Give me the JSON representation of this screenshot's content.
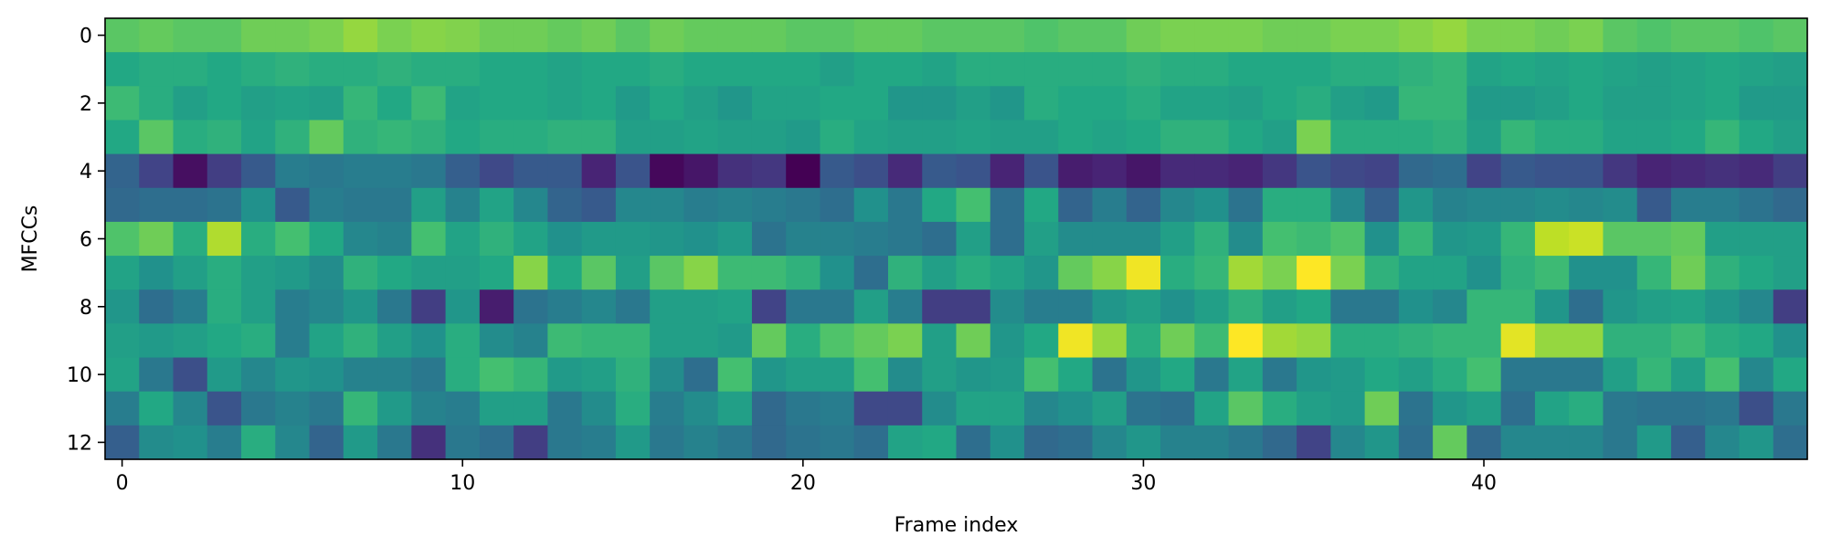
{
  "chart_data": {
    "type": "heatmap",
    "title": "",
    "xlabel": "Frame index",
    "ylabel": "MFCCs",
    "colormap": "viridis",
    "xlim": [
      -0.5,
      49.5
    ],
    "ylim": [
      12.5,
      -0.5
    ],
    "x_ticks": [
      0,
      10,
      20,
      30,
      40
    ],
    "y_ticks": [
      0,
      2,
      4,
      6,
      8,
      10,
      12
    ],
    "x_tick_labels": [
      "0",
      "10",
      "20",
      "30",
      "40"
    ],
    "y_tick_labels": [
      "0",
      "2",
      "4",
      "6",
      "8",
      "10",
      "12"
    ],
    "n_rows": 13,
    "n_cols": 50,
    "value_scale": "normalized 0-1 (no colorbar shown)",
    "matrix": [
      [
        0.74,
        0.76,
        0.74,
        0.74,
        0.78,
        0.78,
        0.8,
        0.84,
        0.8,
        0.82,
        0.81,
        0.78,
        0.78,
        0.76,
        0.78,
        0.74,
        0.78,
        0.76,
        0.76,
        0.76,
        0.74,
        0.74,
        0.76,
        0.76,
        0.74,
        0.74,
        0.74,
        0.72,
        0.74,
        0.74,
        0.78,
        0.8,
        0.8,
        0.8,
        0.78,
        0.78,
        0.8,
        0.8,
        0.82,
        0.84,
        0.8,
        0.8,
        0.78,
        0.8,
        0.74,
        0.72,
        0.74,
        0.74,
        0.72,
        0.74
      ],
      [
        0.6,
        0.62,
        0.62,
        0.6,
        0.62,
        0.64,
        0.62,
        0.62,
        0.64,
        0.62,
        0.62,
        0.6,
        0.6,
        0.58,
        0.6,
        0.6,
        0.62,
        0.6,
        0.6,
        0.6,
        0.6,
        0.56,
        0.6,
        0.6,
        0.58,
        0.62,
        0.62,
        0.62,
        0.62,
        0.62,
        0.64,
        0.62,
        0.62,
        0.6,
        0.6,
        0.6,
        0.62,
        0.62,
        0.64,
        0.66,
        0.58,
        0.6,
        0.58,
        0.6,
        0.58,
        0.56,
        0.58,
        0.6,
        0.58,
        0.56
      ],
      [
        0.68,
        0.62,
        0.56,
        0.6,
        0.56,
        0.58,
        0.56,
        0.66,
        0.6,
        0.68,
        0.58,
        0.6,
        0.6,
        0.58,
        0.6,
        0.54,
        0.6,
        0.56,
        0.52,
        0.58,
        0.58,
        0.6,
        0.6,
        0.52,
        0.52,
        0.56,
        0.52,
        0.62,
        0.6,
        0.6,
        0.62,
        0.58,
        0.58,
        0.56,
        0.6,
        0.62,
        0.56,
        0.54,
        0.66,
        0.66,
        0.54,
        0.54,
        0.56,
        0.6,
        0.56,
        0.56,
        0.58,
        0.6,
        0.54,
        0.54
      ],
      [
        0.6,
        0.74,
        0.62,
        0.64,
        0.58,
        0.64,
        0.76,
        0.64,
        0.66,
        0.64,
        0.6,
        0.62,
        0.62,
        0.64,
        0.64,
        0.56,
        0.56,
        0.58,
        0.56,
        0.56,
        0.54,
        0.62,
        0.58,
        0.56,
        0.56,
        0.58,
        0.56,
        0.56,
        0.6,
        0.58,
        0.6,
        0.64,
        0.64,
        0.6,
        0.56,
        0.8,
        0.62,
        0.62,
        0.62,
        0.64,
        0.56,
        0.66,
        0.62,
        0.62,
        0.58,
        0.58,
        0.6,
        0.66,
        0.6,
        0.56
      ],
      [
        0.32,
        0.2,
        0.04,
        0.18,
        0.28,
        0.42,
        0.4,
        0.42,
        0.42,
        0.4,
        0.3,
        0.22,
        0.28,
        0.28,
        0.1,
        0.26,
        0.02,
        0.06,
        0.14,
        0.16,
        0.0,
        0.28,
        0.24,
        0.12,
        0.28,
        0.26,
        0.1,
        0.26,
        0.08,
        0.1,
        0.06,
        0.12,
        0.12,
        0.1,
        0.16,
        0.26,
        0.22,
        0.2,
        0.34,
        0.36,
        0.2,
        0.28,
        0.26,
        0.26,
        0.16,
        0.1,
        0.12,
        0.14,
        0.12,
        0.18
      ],
      [
        0.34,
        0.36,
        0.36,
        0.38,
        0.5,
        0.28,
        0.42,
        0.4,
        0.4,
        0.56,
        0.44,
        0.58,
        0.46,
        0.32,
        0.28,
        0.46,
        0.46,
        0.42,
        0.44,
        0.42,
        0.4,
        0.36,
        0.5,
        0.4,
        0.6,
        0.7,
        0.36,
        0.6,
        0.32,
        0.42,
        0.32,
        0.46,
        0.5,
        0.38,
        0.62,
        0.62,
        0.46,
        0.3,
        0.52,
        0.44,
        0.46,
        0.46,
        0.48,
        0.46,
        0.48,
        0.28,
        0.42,
        0.42,
        0.38,
        0.34
      ],
      [
        0.72,
        0.78,
        0.62,
        0.88,
        0.62,
        0.7,
        0.6,
        0.46,
        0.44,
        0.7,
        0.58,
        0.64,
        0.58,
        0.5,
        0.54,
        0.54,
        0.52,
        0.5,
        0.54,
        0.38,
        0.44,
        0.44,
        0.42,
        0.4,
        0.36,
        0.56,
        0.36,
        0.56,
        0.48,
        0.48,
        0.48,
        0.56,
        0.64,
        0.48,
        0.7,
        0.68,
        0.72,
        0.5,
        0.66,
        0.52,
        0.54,
        0.66,
        0.9,
        0.92,
        0.74,
        0.74,
        0.76,
        0.56,
        0.56,
        0.56
      ],
      [
        0.58,
        0.5,
        0.56,
        0.62,
        0.56,
        0.54,
        0.48,
        0.64,
        0.6,
        0.56,
        0.56,
        0.6,
        0.82,
        0.6,
        0.74,
        0.56,
        0.74,
        0.82,
        0.68,
        0.68,
        0.64,
        0.5,
        0.36,
        0.64,
        0.56,
        0.62,
        0.58,
        0.52,
        0.76,
        0.82,
        0.98,
        0.62,
        0.66,
        0.86,
        0.8,
        1.0,
        0.8,
        0.64,
        0.58,
        0.58,
        0.5,
        0.64,
        0.68,
        0.5,
        0.5,
        0.66,
        0.78,
        0.64,
        0.6,
        0.56
      ],
      [
        0.52,
        0.36,
        0.42,
        0.62,
        0.56,
        0.42,
        0.46,
        0.52,
        0.4,
        0.18,
        0.52,
        0.08,
        0.38,
        0.42,
        0.46,
        0.4,
        0.56,
        0.56,
        0.58,
        0.2,
        0.4,
        0.4,
        0.56,
        0.42,
        0.18,
        0.18,
        0.48,
        0.42,
        0.42,
        0.52,
        0.56,
        0.5,
        0.56,
        0.64,
        0.56,
        0.6,
        0.4,
        0.4,
        0.5,
        0.46,
        0.66,
        0.66,
        0.52,
        0.36,
        0.52,
        0.56,
        0.58,
        0.52,
        0.46,
        0.18
      ],
      [
        0.56,
        0.54,
        0.56,
        0.6,
        0.62,
        0.42,
        0.58,
        0.64,
        0.56,
        0.5,
        0.62,
        0.48,
        0.44,
        0.68,
        0.66,
        0.66,
        0.56,
        0.56,
        0.54,
        0.76,
        0.62,
        0.72,
        0.76,
        0.8,
        0.56,
        0.78,
        0.52,
        0.6,
        0.98,
        0.84,
        0.62,
        0.78,
        0.68,
        1.0,
        0.86,
        0.84,
        0.62,
        0.62,
        0.64,
        0.66,
        0.66,
        0.96,
        0.84,
        0.84,
        0.64,
        0.64,
        0.68,
        0.62,
        0.6,
        0.5
      ],
      [
        0.58,
        0.4,
        0.24,
        0.54,
        0.46,
        0.52,
        0.5,
        0.44,
        0.44,
        0.4,
        0.62,
        0.7,
        0.66,
        0.54,
        0.56,
        0.64,
        0.48,
        0.36,
        0.7,
        0.52,
        0.56,
        0.56,
        0.7,
        0.48,
        0.56,
        0.52,
        0.54,
        0.7,
        0.6,
        0.38,
        0.52,
        0.6,
        0.4,
        0.58,
        0.4,
        0.52,
        0.54,
        0.6,
        0.56,
        0.62,
        0.7,
        0.4,
        0.4,
        0.4,
        0.56,
        0.66,
        0.56,
        0.7,
        0.46,
        0.6
      ],
      [
        0.42,
        0.6,
        0.46,
        0.26,
        0.4,
        0.44,
        0.4,
        0.66,
        0.54,
        0.44,
        0.42,
        0.56,
        0.56,
        0.4,
        0.48,
        0.62,
        0.42,
        0.48,
        0.56,
        0.34,
        0.4,
        0.42,
        0.22,
        0.22,
        0.48,
        0.58,
        0.58,
        0.46,
        0.5,
        0.56,
        0.38,
        0.36,
        0.58,
        0.74,
        0.62,
        0.56,
        0.54,
        0.78,
        0.38,
        0.52,
        0.56,
        0.36,
        0.58,
        0.62,
        0.4,
        0.38,
        0.38,
        0.4,
        0.24,
        0.4
      ],
      [
        0.3,
        0.48,
        0.5,
        0.42,
        0.62,
        0.46,
        0.32,
        0.54,
        0.4,
        0.14,
        0.4,
        0.36,
        0.18,
        0.4,
        0.42,
        0.54,
        0.4,
        0.44,
        0.4,
        0.34,
        0.38,
        0.4,
        0.36,
        0.58,
        0.6,
        0.36,
        0.5,
        0.34,
        0.36,
        0.46,
        0.52,
        0.44,
        0.44,
        0.4,
        0.34,
        0.2,
        0.46,
        0.52,
        0.36,
        0.76,
        0.34,
        0.46,
        0.46,
        0.46,
        0.4,
        0.54,
        0.3,
        0.46,
        0.52,
        0.36
      ]
    ]
  }
}
